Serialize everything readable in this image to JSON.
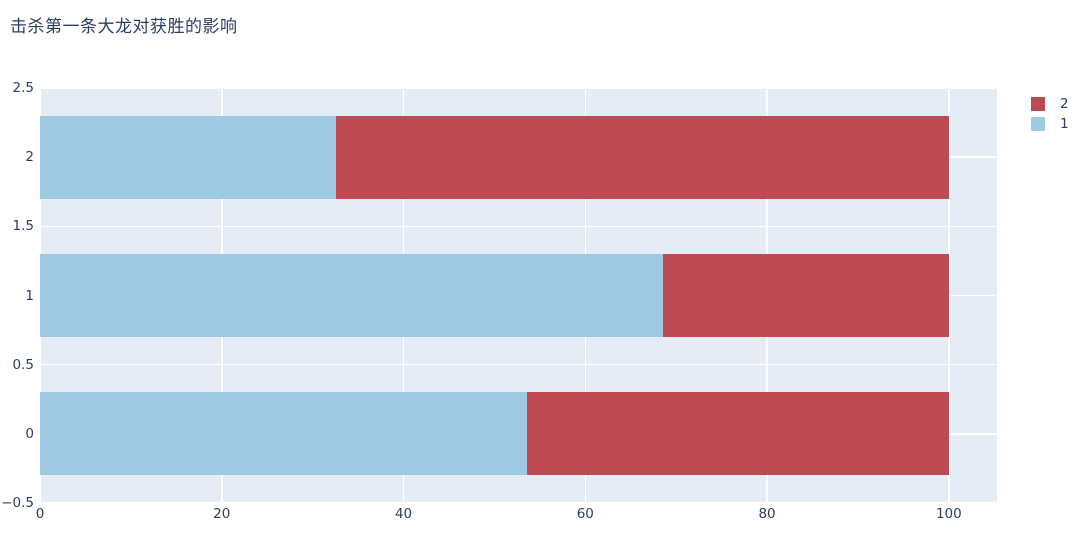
{
  "title": {
    "text": "击杀第一条大龙对获胜的影响"
  },
  "colors": {
    "font": "#2a3f5f",
    "plot_background": "#e5ecf6",
    "grid": "#ffffff",
    "series_1_blue": "#9ecae1",
    "series_2_red": "#be4b54",
    "page_background": "#ffffff"
  },
  "chart_data": {
    "type": "bar",
    "orientation": "horizontal",
    "barmode": "stack",
    "title": "击杀第一条大龙对获胜的影响",
    "xlabel": "",
    "ylabel": "",
    "categories": [
      0,
      1,
      2
    ],
    "series": [
      {
        "name": "1",
        "color": "#9ecae1",
        "values": [
          53.6,
          68.6,
          32.6
        ]
      },
      {
        "name": "2",
        "color": "#be4b54",
        "values": [
          46.4,
          31.4,
          67.4
        ]
      }
    ],
    "xlim": [
      0,
      105.3
    ],
    "ylim": [
      -0.5,
      2.5
    ],
    "xticks": {
      "values": [
        0,
        20,
        40,
        60,
        80,
        100
      ],
      "labels": [
        "0",
        "20",
        "40",
        "60",
        "80",
        "100"
      ]
    },
    "yticks": {
      "values": [
        -0.5,
        0,
        0.5,
        1,
        1.5,
        2,
        2.5
      ],
      "labels": [
        "−0.5",
        "0",
        "0.5",
        "1",
        "1.5",
        "2",
        "2.5"
      ]
    },
    "bar_thickness_units": 0.6,
    "grid": true,
    "legend": {
      "position": "right",
      "entries": [
        {
          "label": "2",
          "color": "#be4b54"
        },
        {
          "label": "1",
          "color": "#9ecae1"
        }
      ]
    }
  }
}
